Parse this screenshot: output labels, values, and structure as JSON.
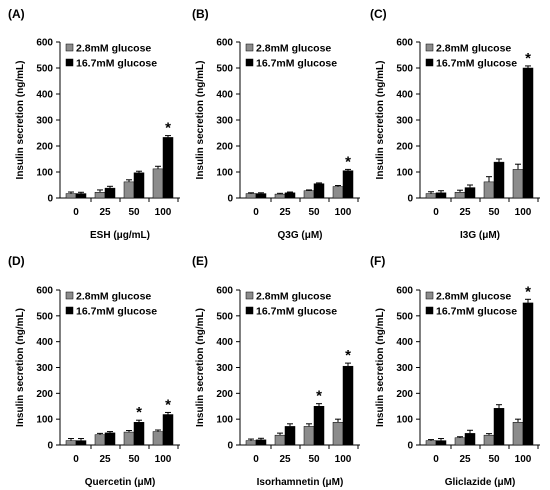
{
  "colors": {
    "low_glucose": "#8c8c8c",
    "high_glucose": "#000000",
    "axis": "#000000",
    "error_bar": "#000000"
  },
  "chart_data": [
    {
      "panel": "(A)",
      "type": "bar",
      "categories": [
        "0",
        "25",
        "50",
        "100"
      ],
      "xlabel": "ESH (μg/mL)",
      "ylabel": "Insulin secretion (ng/mL)",
      "ylim": [
        0,
        600
      ],
      "yticks": [
        "0",
        "100",
        "200",
        "300",
        "400",
        "500",
        "600"
      ],
      "legend_position": "top-left",
      "series": [
        {
          "name": "2.8mM glucose",
          "color": "#8c8c8c",
          "values": [
            17,
            22,
            62,
            112
          ],
          "errors": [
            6,
            9,
            8,
            10
          ]
        },
        {
          "name": "16.7mM glucose",
          "color": "#000000",
          "values": [
            17,
            38,
            97,
            233
          ],
          "errors": [
            5,
            7,
            6,
            7
          ]
        }
      ],
      "annotations": [
        {
          "category": "100",
          "series": "16.7mM glucose",
          "text": "*"
        }
      ]
    },
    {
      "panel": "(B)",
      "type": "bar",
      "categories": [
        "0",
        "25",
        "50",
        "100"
      ],
      "xlabel": "Q3G (μM)",
      "ylabel": "Insulin secretion (ng/mL)",
      "ylim": [
        0,
        600
      ],
      "yticks": [
        "0",
        "100",
        "200",
        "300",
        "400",
        "500",
        "600"
      ],
      "legend_position": "top-left",
      "series": [
        {
          "name": "2.8mM glucose",
          "color": "#8c8c8c",
          "values": [
            17,
            15,
            28,
            44
          ],
          "errors": [
            3,
            3,
            3,
            4
          ]
        },
        {
          "name": "16.7mM glucose",
          "color": "#000000",
          "values": [
            17,
            20,
            55,
            105
          ],
          "errors": [
            3,
            3,
            3,
            5
          ]
        }
      ],
      "annotations": [
        {
          "category": "100",
          "series": "16.7mM glucose",
          "text": "*"
        }
      ]
    },
    {
      "panel": "(C)",
      "type": "bar",
      "categories": [
        "0",
        "25",
        "50",
        "100"
      ],
      "xlabel": "I3G (μM)",
      "ylabel": "Insulin secretion (ng/mL)",
      "ylim": [
        0,
        600
      ],
      "yticks": [
        "0",
        "100",
        "200",
        "300",
        "400",
        "500",
        "600"
      ],
      "legend_position": "top-left",
      "series": [
        {
          "name": "2.8mM glucose",
          "color": "#8c8c8c",
          "values": [
            17,
            22,
            62,
            110
          ],
          "errors": [
            7,
            8,
            20,
            20
          ]
        },
        {
          "name": "16.7mM glucose",
          "color": "#000000",
          "values": [
            20,
            40,
            138,
            500
          ],
          "errors": [
            8,
            10,
            12,
            8
          ]
        }
      ],
      "annotations": [
        {
          "category": "100",
          "series": "16.7mM glucose",
          "text": "*"
        }
      ]
    },
    {
      "panel": "(D)",
      "type": "bar",
      "categories": [
        "0",
        "25",
        "50",
        "100"
      ],
      "xlabel": "Quercetin (μM)",
      "ylabel": "Insulin secretion (ng/mL)",
      "ylim": [
        0,
        600
      ],
      "yticks": [
        "0",
        "100",
        "200",
        "300",
        "400",
        "500",
        "600"
      ],
      "legend_position": "top-left",
      "series": [
        {
          "name": "2.8mM glucose",
          "color": "#8c8c8c",
          "values": [
            17,
            40,
            50,
            52
          ],
          "errors": [
            8,
            5,
            6,
            6
          ]
        },
        {
          "name": "16.7mM glucose",
          "color": "#000000",
          "values": [
            17,
            47,
            88,
            118
          ],
          "errors": [
            8,
            5,
            8,
            8
          ]
        }
      ],
      "annotations": [
        {
          "category": "50",
          "series": "16.7mM glucose",
          "text": "*"
        },
        {
          "category": "100",
          "series": "16.7mM glucose",
          "text": "*"
        }
      ]
    },
    {
      "panel": "(E)",
      "type": "bar",
      "categories": [
        "0",
        "25",
        "50",
        "100"
      ],
      "xlabel": "Isorhamnetin (μM)",
      "ylabel": "Insulin secretion (ng/mL)",
      "ylim": [
        0,
        600
      ],
      "yticks": [
        "0",
        "100",
        "200",
        "300",
        "400",
        "500",
        "600"
      ],
      "legend_position": "top-left",
      "series": [
        {
          "name": "2.8mM glucose",
          "color": "#8c8c8c",
          "values": [
            17,
            38,
            72,
            88
          ],
          "errors": [
            6,
            8,
            10,
            12
          ]
        },
        {
          "name": "16.7mM glucose",
          "color": "#000000",
          "values": [
            20,
            72,
            150,
            305
          ],
          "errors": [
            6,
            10,
            10,
            12
          ]
        }
      ],
      "annotations": [
        {
          "category": "50",
          "series": "16.7mM glucose",
          "text": "*"
        },
        {
          "category": "100",
          "series": "16.7mM glucose",
          "text": "*"
        }
      ]
    },
    {
      "panel": "(F)",
      "type": "bar",
      "categories": [
        "0",
        "25",
        "50",
        "100"
      ],
      "xlabel": "Gliclazide (μM)",
      "ylabel": "Insulin secretion (ng/mL)",
      "ylim": [
        0,
        600
      ],
      "yticks": [
        "0",
        "100",
        "200",
        "300",
        "400",
        "500",
        "600"
      ],
      "legend_position": "top-left",
      "series": [
        {
          "name": "2.8mM glucose",
          "color": "#8c8c8c",
          "values": [
            17,
            28,
            38,
            88
          ],
          "errors": [
            4,
            4,
            6,
            12
          ]
        },
        {
          "name": "16.7mM glucose",
          "color": "#000000",
          "values": [
            17,
            45,
            142,
            550
          ],
          "errors": [
            8,
            12,
            14,
            14
          ]
        }
      ],
      "annotations": [
        {
          "category": "100",
          "series": "16.7mM glucose",
          "text": "*"
        }
      ]
    }
  ]
}
